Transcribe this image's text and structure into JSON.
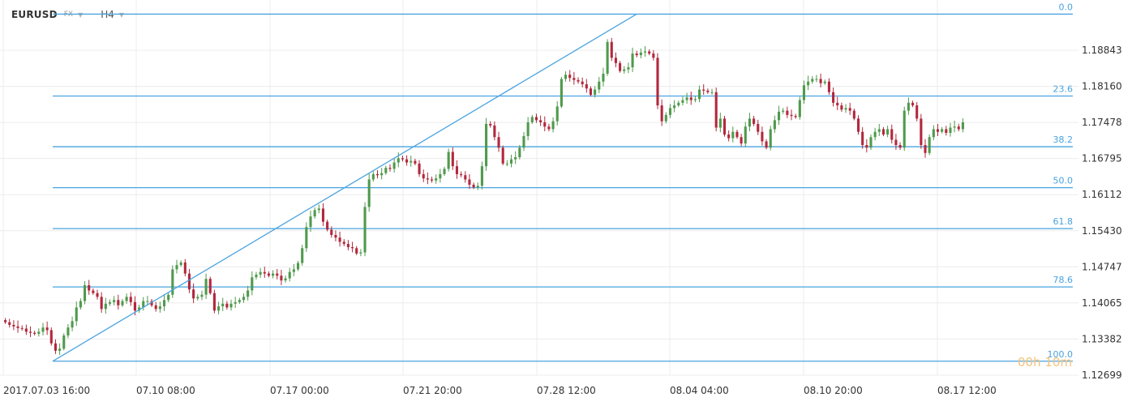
{
  "header": {
    "symbol": "EURUSD",
    "market": "FX",
    "timeframe": "H4"
  },
  "countdown": "00h 10m",
  "colors": {
    "up": "#4f9a4d",
    "down": "#b2283d",
    "fib": "#4aa3df",
    "grid": "#ececec"
  },
  "chart_data": {
    "type": "candlestick",
    "y_axis": {
      "ticks": [
        "1.18843",
        "1.18160",
        "1.17478",
        "1.16795",
        "1.16112",
        "1.15430",
        "1.14747",
        "1.14065",
        "1.13382",
        "1.12699"
      ],
      "range": [
        1.12699,
        1.19526
      ]
    },
    "x_axis": {
      "ticks": [
        "2017.07.03  16:00",
        "07.10  08:00",
        "07.17  00:00",
        "07.21  20:00",
        "07.28  12:00",
        "08.04  04:00",
        "08.10  20:00",
        "08.17  12:00"
      ]
    },
    "fibonacci": {
      "high": 1.19526,
      "low": 1.12963,
      "levels": [
        {
          "label": "0.0",
          "ratio": 0.0
        },
        {
          "label": "23.6",
          "ratio": 0.236
        },
        {
          "label": "38.2",
          "ratio": 0.382
        },
        {
          "label": "50.0",
          "ratio": 0.5
        },
        {
          "label": "61.8",
          "ratio": 0.618
        },
        {
          "label": "78.6",
          "ratio": 0.786
        },
        {
          "label": "100.0",
          "ratio": 1.0
        }
      ]
    },
    "closes": [
      1.137,
      1.1365,
      1.1362,
      1.1359,
      1.1358,
      1.1352,
      1.135,
      1.1348,
      1.1352,
      1.136,
      1.1355,
      1.133,
      1.1316,
      1.132,
      1.1345,
      1.136,
      1.1372,
      1.1398,
      1.141,
      1.144,
      1.143,
      1.1425,
      1.1418,
      1.1395,
      1.1405,
      1.1408,
      1.1412,
      1.1402,
      1.141,
      1.1418,
      1.1408,
      1.1392,
      1.1398,
      1.141,
      1.141,
      1.1402,
      1.1395,
      1.14,
      1.1412,
      1.1422,
      1.147,
      1.1478,
      1.1483,
      1.1462,
      1.1432,
      1.1415,
      1.1418,
      1.1422,
      1.1452,
      1.1425,
      1.1392,
      1.14,
      1.1405,
      1.1398,
      1.1405,
      1.1408,
      1.1412,
      1.1418,
      1.143,
      1.1455,
      1.146,
      1.1465,
      1.1462,
      1.1458,
      1.1462,
      1.1458,
      1.1449,
      1.1453,
      1.1465,
      1.147,
      1.1482,
      1.151,
      1.155,
      1.157,
      1.1582,
      1.1585,
      1.156,
      1.1545,
      1.1535,
      1.153,
      1.1522,
      1.1518,
      1.1512,
      1.151,
      1.15,
      1.1502,
      1.1588,
      1.164,
      1.165,
      1.1648,
      1.1652,
      1.1662,
      1.166,
      1.1672,
      1.168,
      1.1678,
      1.1672,
      1.1675,
      1.167,
      1.165,
      1.1642,
      1.164,
      1.1638,
      1.1642,
      1.165,
      1.166,
      1.1692,
      1.1665,
      1.165,
      1.1648,
      1.164,
      1.163,
      1.1625,
      1.1628,
      1.1665,
      1.1745,
      1.1742,
      1.172,
      1.17,
      1.167,
      1.167,
      1.1678,
      1.1682,
      1.17,
      1.1722,
      1.1748,
      1.1758,
      1.1752,
      1.1748,
      1.174,
      1.1735,
      1.175,
      1.1778,
      1.183,
      1.1838,
      1.1832,
      1.1828,
      1.1825,
      1.182,
      1.1812,
      1.18,
      1.181,
      1.1825,
      1.184,
      1.19,
      1.187,
      1.186,
      1.1845,
      1.1848,
      1.1852,
      1.1878,
      1.1875,
      1.188,
      1.1882,
      1.1878,
      1.187,
      1.178,
      1.175,
      1.1762,
      1.1775,
      1.178,
      1.1785,
      1.179,
      1.1795,
      1.179,
      1.1792,
      1.181,
      1.1808,
      1.1805,
      1.1805,
      1.1738,
      1.1755,
      1.1725,
      1.1718,
      1.173,
      1.172,
      1.1708,
      1.174,
      1.1755,
      1.1745,
      1.173,
      1.1712,
      1.17,
      1.1735,
      1.1752,
      1.1768,
      1.177,
      1.1762,
      1.176,
      1.1758,
      1.179,
      1.1818,
      1.1825,
      1.183,
      1.183,
      1.1822,
      1.1825,
      1.1805,
      1.1785,
      1.178,
      1.1772,
      1.1775,
      1.177,
      1.1755,
      1.173,
      1.1705,
      1.17,
      1.172,
      1.173,
      1.1735,
      1.1725,
      1.1735,
      1.1715,
      1.1705,
      1.17,
      1.177,
      1.1785,
      1.178,
      1.1755,
      1.1705,
      1.169,
      1.172,
      1.1735,
      1.173,
      1.1735,
      1.1728,
      1.1738,
      1.174,
      1.1735,
      1.1748
    ]
  }
}
